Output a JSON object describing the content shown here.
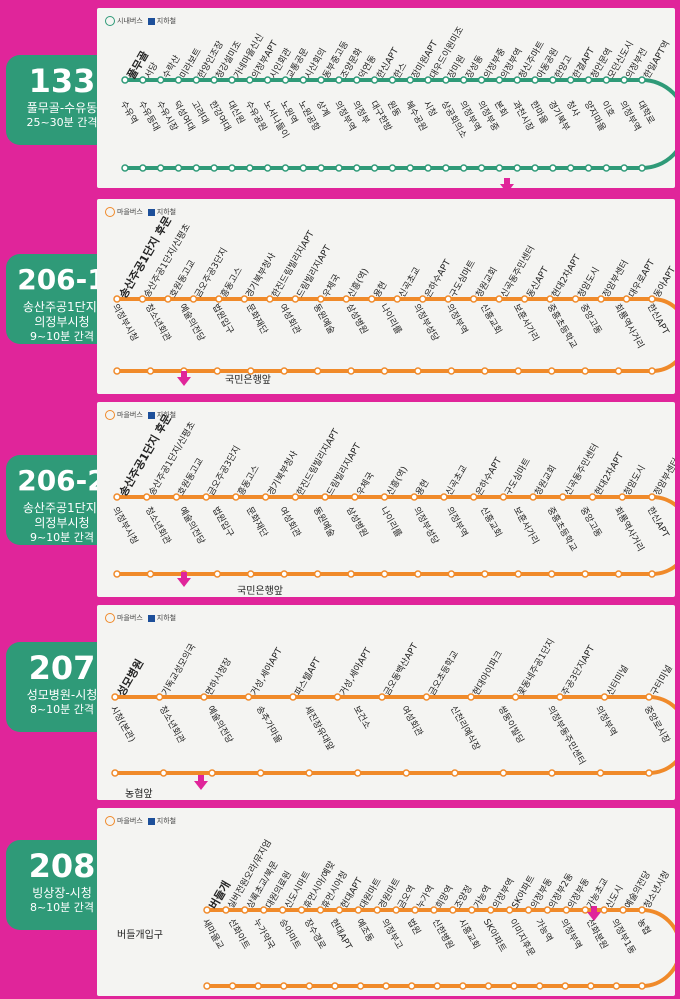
{
  "legend": {
    "village_bus": "시내버스",
    "village_bus2": "마을버스",
    "subway": "지하철"
  },
  "routes": [
    {
      "number": "133",
      "name": "풀무골-수유동",
      "interval": "25~30분 간격",
      "color": "#2f9a78",
      "upper_stops": [
        "풀무골",
        "서당",
        "수락산",
        "미라보트",
        "한양인조장",
        "청강설미조",
        "가네마을신신",
        "의정부APT",
        "시인회관",
        "교통공문",
        "시산회의",
        "동부중고등",
        "조양문화",
        "덕연동",
        "한신APT",
        "한스",
        "장미원APT",
        "대우드이원미조",
        "장미원",
        "장성동",
        "의정부중",
        "의정부역",
        "청신주마트",
        "아동공원",
        "한양고",
        "한결APT",
        "청안문역",
        "모던신도시",
        "의정부전",
        "한일APT역"
      ],
      "lower_stops": [
        "수유역",
        "수유등대",
        "수유시장",
        "덕성여대",
        "고려대",
        "한강여대",
        "대신원",
        "수유공원",
        "노서나들이",
        "노원역",
        "노원공항",
        "상계",
        "의정부역",
        "의정부",
        "대구한방",
        "원동",
        "혜수공원",
        "시청",
        "상공회의소",
        "의정부역",
        "의정부중",
        "본회",
        "과천시장",
        "한마을",
        "경기북부",
        "청사",
        "양지마을",
        "이호",
        "의정부역",
        "대학로"
      ]
    },
    {
      "number": "206-1",
      "name": "송산주공1단지-\n의정부시청",
      "interval": "9~10분 간격",
      "color": "#f08a2a",
      "upper_stops": [
        "송산주공1단지 후문",
        "송산주공1단지/신평초",
        "호원동고교",
        "금오주공3단지",
        "흥동고스",
        "경기북부청사",
        "한진드림빌리지APT",
        "드림빌리지APT",
        "우체국",
        "신흥(역)",
        "용현",
        "신곡초교",
        "은하수APT",
        "구도심마트",
        "청원교회",
        "신곡동주민센터",
        "동신APT",
        "현대2차APT",
        "청암도시",
        "정암부센터",
        "대우로APT",
        "동아APT"
      ],
      "lower_stops": [
        "의정부시청",
        "청소년회관",
        "예술의전당",
        "법원입구",
        "문화재단",
        "여성회관",
        "동원예술",
        "삼성병원",
        "나이리를",
        "의정부성당",
        "의정부역",
        "신흥교회",
        "보훈서가리",
        "중흥초등학교",
        "중앙고동",
        "회룡역사거리",
        "한신APT"
      ],
      "extra": "국민은행앞"
    },
    {
      "number": "206-2",
      "name": "송산주공1단지-\n의정부시청",
      "interval": "9~10분 간격",
      "color": "#f08a2a",
      "upper_stops": [
        "송산주공1단지 후문",
        "송산주공1단지/신평초",
        "호원동고교",
        "금오주공3단지",
        "흥동고스",
        "경기북부청사",
        "한진드림빌리지APT",
        "드림빌리지APT",
        "우체국",
        "신흥(역)",
        "용현",
        "신곡초교",
        "은하수APT",
        "구도심마트",
        "청원교회",
        "신곡동주민센터",
        "현대2차APT",
        "청암도시",
        "정암부센터"
      ],
      "lower_stops": [
        "의정부시청",
        "청소년회관",
        "예술의전당",
        "법원입구",
        "문화재단",
        "여성회관",
        "동원예술",
        "삼성병원",
        "나이리를",
        "의정부성당",
        "의정부역",
        "신흥교회",
        "보훈서가리",
        "중흥초등학교",
        "중앙고동",
        "회룡역사거리",
        "한신APT"
      ],
      "extra": "국민은행앞"
    },
    {
      "number": "207",
      "name": "성모병원-시청",
      "interval": "8~10분 간격",
      "color": "#f08a2a",
      "upper_stops": [
        "성모병원",
        "기독교성모의국",
        "면하시청장",
        "거성,세아APT",
        "파스텔APT",
        "거성,세아APT",
        "금오동백산APT",
        "금오초등학교",
        "현대아이파크",
        "꽃동네주공1단지",
        "주공3단지APT",
        "신터미널",
        "구터미널"
      ],
      "lower_stops": [
        "시청(본관)",
        "청소년회관",
        "예술의전당",
        "송추가마을",
        "세진장유대앞",
        "보건소",
        "여성회관",
        "신천리예식장",
        "쌍둥이빌딩",
        "의정부동주민센터",
        "의정부역",
        "중앙로시장"
      ],
      "extra": "농협앞"
    },
    {
      "number": "208",
      "name": "빙상장-시청",
      "interval": "8~10분 간격",
      "color": "#f08a2a",
      "upper_stops": [
        "버들개",
        "실버전원오라/뮤지엄",
        "상록초교/북문",
        "대원의료원",
        "신도시마트",
        "휴먼시아/예맞",
        "휴먼시아청",
        "현대APT",
        "대원마트",
        "경원마트",
        "금오역",
        "누가역",
        "희망역",
        "조양정",
        "가능역",
        "의정부역",
        "SK아파트",
        "의정부동",
        "의정부2동",
        "의정부동",
        "가능초교",
        "신도시",
        "예술의전당",
        "청소년시청"
      ],
      "lower_stops": [
        "새마을교",
        "선화아트",
        "누가약국",
        "승아마트",
        "장수경로",
        "현대APT",
        "예조동",
        "의정부고",
        "법원",
        "신한병원",
        "시흥교회",
        "SK아파트",
        "이미지후문",
        "가능역",
        "의정부역",
        "선화분원",
        "의정부1동",
        "농협"
      ],
      "extra": "버들개입구"
    }
  ]
}
